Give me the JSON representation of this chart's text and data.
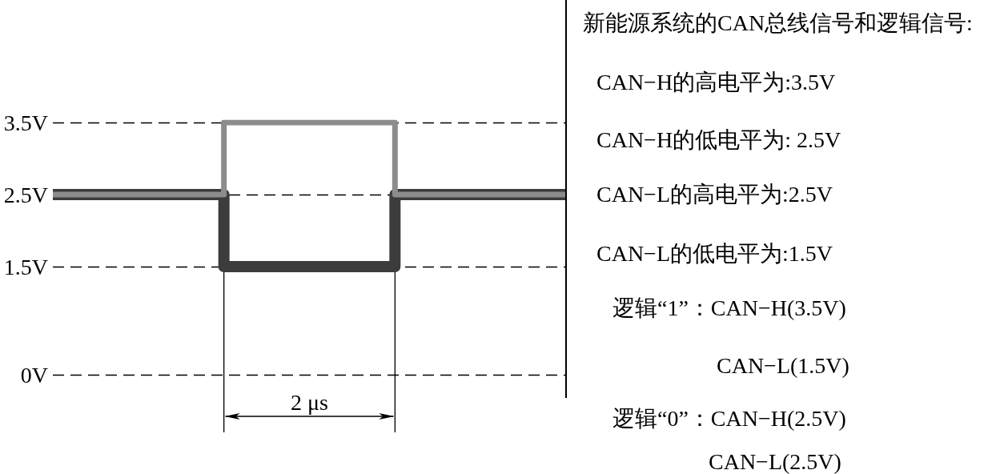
{
  "chart_data": [
    {
      "type": "step",
      "categories": [
        null,
        null,
        null,
        null
      ],
      "series": [
        {
          "color": "#8c8c8c",
          "values": [
            2.5,
            3.5,
            2.5,
            2.5
          ]
        },
        {
          "color": "#3c3c3c",
          "values": [
            2.5,
            1.5,
            2.5,
            2.5
          ]
        }
      ],
      "ylim": [
        0,
        3.5
      ],
      "yticks": [
        {
          "value": 0,
          "label": "0V"
        },
        {
          "value": 1.5,
          "label": "1.5V"
        },
        {
          "value": 2.5,
          "label": "2.5V"
        },
        {
          "value": 3.5,
          "label": "3.5V"
        }
      ],
      "grid": "y",
      "tick_labels": "y",
      "marker": "none",
      "line_style": "solid",
      "annotations": [
        "2 μs"
      ]
    },
    {
      "type": "other",
      "title": "新能源系统的CAN总线信号和逻辑信号:",
      "annotations": [
        "CAN−H的高电平为:3.5V",
        "CAN−H的低电平为: 2.5V",
        "CAN−L的高电平为:2.5V",
        "CAN−L的低电平为:1.5V",
        "逻辑“1”：CAN−H(3.5V)",
        "CAN−L(1.5V)",
        "逻辑“0”：CAN−H(2.5V)",
        "CAN−L(2.5V)"
      ]
    }
  ]
}
